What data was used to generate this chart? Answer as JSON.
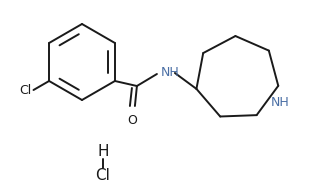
{
  "bg_color": "#ffffff",
  "line_color": "#1a1a1a",
  "nh_color": "#4a6fa5",
  "figsize": [
    3.11,
    1.91
  ],
  "dpi": 100,
  "cl_label": "Cl",
  "o_label": "O",
  "nh_amide_label": "NH",
  "nh_ring_label": "NH",
  "hcl_h": "H",
  "hcl_cl": "Cl"
}
